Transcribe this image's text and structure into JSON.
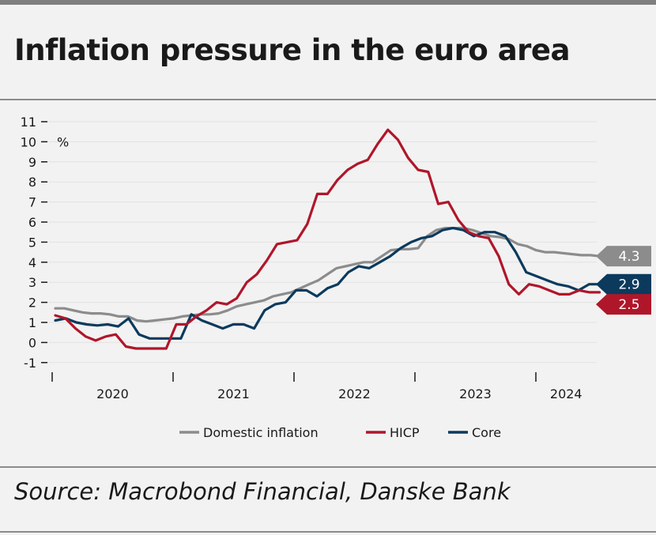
{
  "title": "Inflation pressure in the euro area",
  "source": "Source: Macrobond Financial, Danske Bank",
  "chart_data": {
    "type": "line",
    "title": "Inflation pressure in the euro area",
    "ylabel": "%",
    "xlabel": "",
    "ylim": [
      -1,
      11
    ],
    "yticks": [
      "-1",
      "0",
      "1",
      "2",
      "3",
      "4",
      "5",
      "6",
      "7",
      "8",
      "9",
      "10",
      "11"
    ],
    "x_start": "2019-12",
    "x_end": "2024-06",
    "year_labels": [
      "2020",
      "2021",
      "2022",
      "2023",
      "2024"
    ],
    "grid": true,
    "legend_position": "bottom",
    "series": [
      {
        "name": "Domestic inflation",
        "color": "#8c8c8c",
        "end_label": "4.3",
        "values": [
          1.7,
          1.7,
          1.6,
          1.5,
          1.45,
          1.45,
          1.4,
          1.3,
          1.3,
          1.1,
          1.05,
          1.1,
          1.15,
          1.2,
          1.3,
          1.35,
          1.4,
          1.4,
          1.45,
          1.6,
          1.8,
          1.9,
          2.0,
          2.1,
          2.3,
          2.4,
          2.5,
          2.7,
          2.9,
          3.1,
          3.4,
          3.7,
          3.8,
          3.9,
          4.0,
          4.0,
          4.3,
          4.6,
          4.65,
          4.65,
          4.7,
          5.3,
          5.6,
          5.7,
          5.7,
          5.7,
          5.6,
          5.45,
          5.3,
          5.25,
          5.15,
          4.9,
          4.8,
          4.6,
          4.5,
          4.5,
          4.45,
          4.4,
          4.35,
          4.35,
          4.3
        ]
      },
      {
        "name": "HICP",
        "color": "#b0162a",
        "end_label": "2.5",
        "values": [
          1.35,
          1.2,
          0.7,
          0.3,
          0.1,
          0.3,
          0.4,
          -0.2,
          -0.3,
          -0.3,
          -0.3,
          -0.3,
          0.9,
          0.9,
          1.3,
          1.6,
          2.0,
          1.9,
          2.2,
          3.0,
          3.4,
          4.1,
          4.9,
          5.0,
          5.1,
          5.9,
          7.4,
          7.4,
          8.1,
          8.6,
          8.9,
          9.1,
          9.9,
          10.6,
          10.1,
          9.2,
          8.6,
          8.5,
          6.9,
          7.0,
          6.1,
          5.5,
          5.3,
          5.2,
          4.3,
          2.9,
          2.4,
          2.9,
          2.8,
          2.6,
          2.4,
          2.4,
          2.6,
          2.5,
          2.5
        ]
      },
      {
        "name": "Core",
        "color": "#0b3a5d",
        "end_label": "2.9",
        "values": [
          1.1,
          1.2,
          1.0,
          0.9,
          0.85,
          0.9,
          0.8,
          1.2,
          0.4,
          0.2,
          0.2,
          0.2,
          0.2,
          1.4,
          1.1,
          0.9,
          0.7,
          0.9,
          0.9,
          0.7,
          1.6,
          1.9,
          2.0,
          2.6,
          2.6,
          2.3,
          2.7,
          2.9,
          3.5,
          3.8,
          3.7,
          4.0,
          4.3,
          4.7,
          5.0,
          5.2,
          5.3,
          5.6,
          5.7,
          5.6,
          5.3,
          5.5,
          5.5,
          5.3,
          4.5,
          3.5,
          3.3,
          3.1,
          2.9,
          2.8,
          2.6,
          2.9,
          2.9
        ]
      }
    ]
  },
  "legend": [
    {
      "label": "Domestic inflation",
      "color": "#8c8c8c"
    },
    {
      "label": "HICP",
      "color": "#b0162a"
    },
    {
      "label": "Core",
      "color": "#0b3a5d"
    }
  ]
}
